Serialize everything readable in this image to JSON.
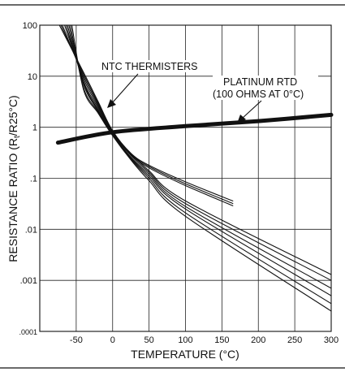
{
  "chart_data": {
    "type": "line",
    "xlabel": "TEMPERATURE (°C)",
    "ylabel_main": "RESISTANCE RATIO (R",
    "ylabel_sub": "t",
    "ylabel_tail": "/R25°C)",
    "xlim": [
      -100,
      300
    ],
    "ylim": [
      0.0001,
      100
    ],
    "y_scale": "log",
    "grid": true,
    "x_ticks": [
      -50,
      0,
      50,
      100,
      150,
      200,
      250,
      300
    ],
    "x_tick_labels": [
      "-50",
      "0",
      "50",
      "100",
      "150",
      "200",
      "250",
      "300"
    ],
    "y_ticks": [
      100,
      10,
      1,
      0.1,
      0.01,
      0.001,
      0.0001
    ],
    "y_tick_labels": [
      "100",
      "10",
      "1",
      ".1",
      ".01",
      ".001",
      ".0001"
    ],
    "annotations": [
      {
        "text": "NTC THERMISTERS"
      },
      {
        "text": "PLATINUM RTD"
      },
      {
        "text": "(100 OHMS AT 0°C)"
      }
    ],
    "series": [
      {
        "group": "rtd",
        "x": [
          -75,
          0,
          100,
          200,
          300
        ],
        "y": [
          0.5,
          0.8,
          1.05,
          1.32,
          1.75
        ]
      },
      {
        "group": "ntc",
        "x": [
          -73,
          -40,
          -20,
          0,
          25,
          50,
          100,
          165
        ],
        "y": [
          100,
          12,
          3.2,
          0.85,
          0.31,
          0.18,
          0.085,
          0.036
        ]
      },
      {
        "group": "ntc",
        "x": [
          -71,
          -40,
          -20,
          0,
          25,
          50,
          100,
          165
        ],
        "y": [
          100,
          11,
          3.0,
          0.82,
          0.3,
          0.17,
          0.078,
          0.032
        ]
      },
      {
        "group": "ntc",
        "x": [
          -69,
          -40,
          -20,
          0,
          25,
          50,
          100,
          165
        ],
        "y": [
          100,
          10,
          2.8,
          0.8,
          0.29,
          0.16,
          0.072,
          0.029
        ]
      },
      {
        "group": "ntc",
        "x": [
          -66,
          -40,
          -20,
          0,
          25,
          50,
          100,
          300
        ],
        "y": [
          100,
          9,
          2.6,
          0.78,
          0.3,
          0.14,
          0.036,
          0.0013
        ]
      },
      {
        "group": "ntc",
        "x": [
          -64,
          -40,
          -20,
          0,
          25,
          50,
          100,
          300
        ],
        "y": [
          100,
          8,
          2.4,
          0.76,
          0.28,
          0.13,
          0.032,
          0.001
        ]
      },
      {
        "group": "ntc",
        "x": [
          -62,
          -40,
          -20,
          0,
          25,
          50,
          100,
          300
        ],
        "y": [
          100,
          7.5,
          2.2,
          0.74,
          0.26,
          0.12,
          0.028,
          0.0007
        ]
      },
      {
        "group": "ntc",
        "x": [
          -60,
          -40,
          -20,
          0,
          25,
          50,
          100,
          300
        ],
        "y": [
          100,
          7,
          2.1,
          0.72,
          0.25,
          0.11,
          0.025,
          0.0005
        ]
      },
      {
        "group": "ntc",
        "x": [
          -58,
          -40,
          -20,
          0,
          25,
          50,
          100,
          300
        ],
        "y": [
          100,
          6,
          2.0,
          0.7,
          0.24,
          0.1,
          0.021,
          0.00035
        ]
      },
      {
        "group": "ntc",
        "x": [
          -56,
          -40,
          -20,
          0,
          25,
          50,
          100,
          300
        ],
        "y": [
          100,
          5.5,
          1.9,
          0.68,
          0.23,
          0.09,
          0.018,
          0.00025
        ]
      }
    ]
  }
}
